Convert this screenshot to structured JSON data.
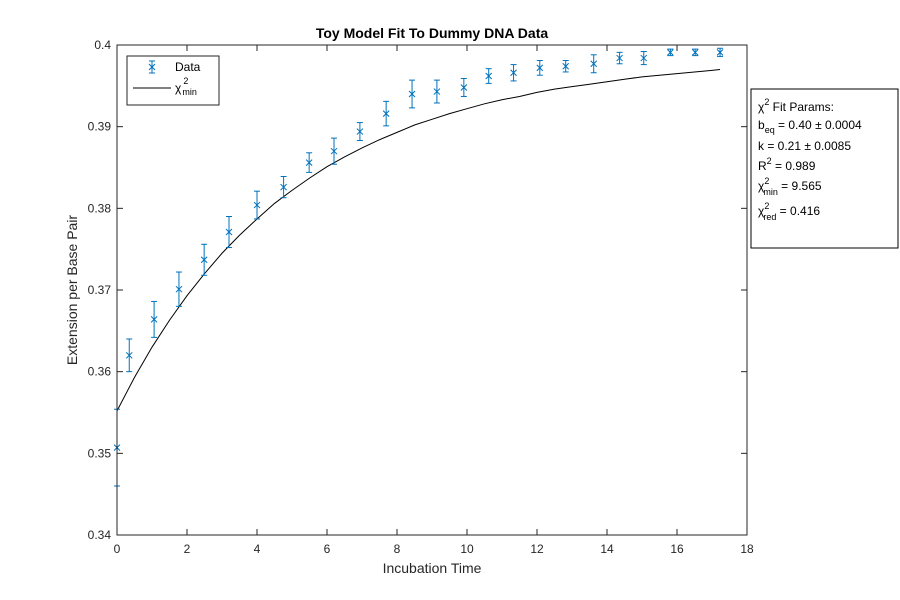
{
  "chart_data": {
    "type": "scatter",
    "title": "Toy Model Fit To Dummy DNA Data",
    "xlabel": "Incubation Time",
    "ylabel": "Extension per Base Pair",
    "xlim": [
      0,
      18
    ],
    "ylim": [
      0.34,
      0.4
    ],
    "xticks": [
      "0",
      "2",
      "4",
      "6",
      "8",
      "10",
      "12",
      "14",
      "16",
      "18"
    ],
    "yticks": [
      "0.34",
      "0.35",
      "0.36",
      "0.37",
      "0.38",
      "0.39",
      "0.4"
    ],
    "grid": false,
    "legend": {
      "position": "top-left",
      "entries": [
        "Data",
        "χ2min"
      ]
    },
    "series": [
      {
        "name": "Data",
        "style": "errorbar-x-markers",
        "color": "#0072BD",
        "x": [
          0.0,
          0.35,
          1.06,
          1.77,
          2.49,
          3.2,
          4.0,
          4.76,
          5.49,
          6.2,
          6.94,
          7.69,
          8.43,
          9.14,
          9.91,
          10.62,
          11.33,
          12.08,
          12.82,
          13.62,
          14.36,
          15.05,
          15.81,
          16.52,
          17.23
        ],
        "y": [
          0.3507,
          0.362,
          0.3664,
          0.3701,
          0.3737,
          0.3771,
          0.3804,
          0.3826,
          0.3856,
          0.387,
          0.3894,
          0.3916,
          0.394,
          0.3943,
          0.3948,
          0.3962,
          0.3966,
          0.3972,
          0.3974,
          0.3977,
          0.3984,
          0.3984,
          0.3991,
          0.3991,
          0.3991
        ],
        "err": [
          0.0047,
          0.002,
          0.0022,
          0.0021,
          0.0019,
          0.0019,
          0.0017,
          0.0013,
          0.0012,
          0.0016,
          0.0011,
          0.0015,
          0.0017,
          0.0014,
          0.0011,
          0.0009,
          0.001,
          0.0009,
          0.0007,
          0.0011,
          0.0007,
          0.0008,
          0.0004,
          0.0004,
          0.0005
        ]
      },
      {
        "name": "χ2min",
        "style": "line",
        "color": "#000000",
        "x": [
          0,
          0.5,
          1,
          1.5,
          2,
          2.5,
          3,
          3.5,
          4,
          4.5,
          5,
          5.5,
          6,
          6.5,
          7,
          7.5,
          8,
          8.5,
          9,
          9.5,
          10,
          10.5,
          11,
          11.5,
          12,
          12.5,
          13,
          13.5,
          14,
          14.5,
          15,
          15.5,
          16,
          16.5,
          17,
          17.23
        ],
        "y": [
          0.3552,
          0.3593,
          0.363,
          0.3663,
          0.3693,
          0.372,
          0.3745,
          0.3767,
          0.3787,
          0.3806,
          0.3822,
          0.3837,
          0.3851,
          0.3863,
          0.3874,
          0.3884,
          0.3893,
          0.3902,
          0.3909,
          0.3916,
          0.3922,
          0.3928,
          0.3933,
          0.3937,
          0.3942,
          0.3946,
          0.3949,
          0.3952,
          0.3955,
          0.3958,
          0.3961,
          0.3963,
          0.3965,
          0.3967,
          0.3969,
          0.397
        ]
      }
    ]
  },
  "fit_params": {
    "heading_pre": "χ",
    "heading_sup": "2",
    "heading_post": " Fit Params:",
    "beq_main": "b",
    "beq_sub": "eq",
    "beq_value": " = 0.40 ± 0.0004",
    "k_line": "k = 0.21 ± 0.0085",
    "r2_main": "R",
    "r2_sup": "2",
    "r2_value": " = 0.989",
    "chimin_main": "χ",
    "chimin_sup": "2",
    "chimin_sub": "min",
    "chimin_value": " = 9.565",
    "chired_main": "χ",
    "chired_sup": "2",
    "chired_sub": "red",
    "chired_value": " = 0.416"
  },
  "legend_labels": {
    "data": "Data",
    "fit_main": "χ",
    "fit_sup": "2",
    "fit_sub": "min"
  }
}
